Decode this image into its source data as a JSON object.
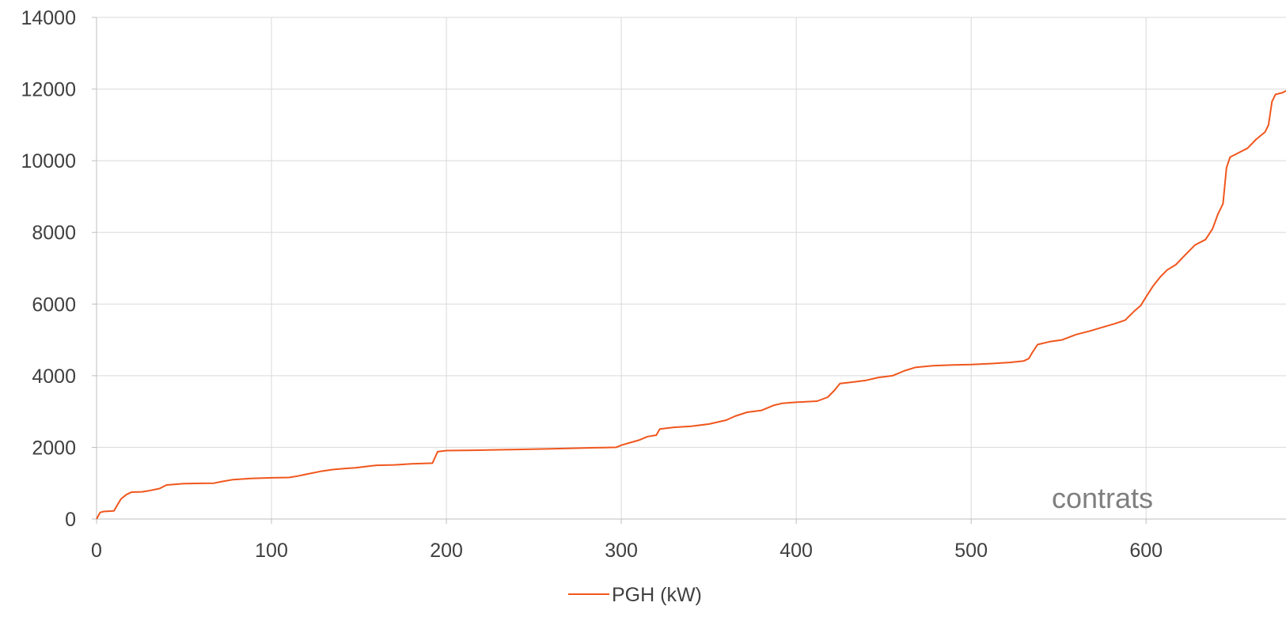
{
  "chart_data": {
    "type": "line",
    "title": "",
    "xlabel": "",
    "ylabel": "",
    "xlim": [
      0,
      680
    ],
    "ylim": [
      0,
      14000
    ],
    "x_ticks": [
      0,
      100,
      200,
      300,
      400,
      500,
      600
    ],
    "y_ticks": [
      0,
      2000,
      4000,
      6000,
      8000,
      10000,
      12000,
      14000
    ],
    "grid": true,
    "legend_position": "bottom",
    "annotation": "contrats",
    "series": [
      {
        "name": "PGH (kW)",
        "color": "#f0561d",
        "points": [
          [
            0,
            0
          ],
          [
            2,
            180
          ],
          [
            4,
            210
          ],
          [
            8,
            220
          ],
          [
            10,
            230
          ],
          [
            12,
            400
          ],
          [
            14,
            560
          ],
          [
            17,
            680
          ],
          [
            20,
            750
          ],
          [
            26,
            760
          ],
          [
            30,
            790
          ],
          [
            36,
            850
          ],
          [
            40,
            950
          ],
          [
            45,
            970
          ],
          [
            50,
            990
          ],
          [
            67,
            1000
          ],
          [
            72,
            1050
          ],
          [
            78,
            1100
          ],
          [
            88,
            1130
          ],
          [
            100,
            1150
          ],
          [
            110,
            1160
          ],
          [
            115,
            1200
          ],
          [
            120,
            1250
          ],
          [
            128,
            1330
          ],
          [
            135,
            1380
          ],
          [
            142,
            1410
          ],
          [
            148,
            1430
          ],
          [
            155,
            1470
          ],
          [
            160,
            1500
          ],
          [
            170,
            1510
          ],
          [
            180,
            1540
          ],
          [
            192,
            1560
          ],
          [
            195,
            1880
          ],
          [
            200,
            1910
          ],
          [
            215,
            1920
          ],
          [
            240,
            1940
          ],
          [
            260,
            1960
          ],
          [
            285,
            1990
          ],
          [
            297,
            2000
          ],
          [
            300,
            2060
          ],
          [
            305,
            2130
          ],
          [
            310,
            2200
          ],
          [
            315,
            2300
          ],
          [
            320,
            2340
          ],
          [
            322,
            2510
          ],
          [
            330,
            2560
          ],
          [
            340,
            2590
          ],
          [
            350,
            2650
          ],
          [
            360,
            2760
          ],
          [
            365,
            2870
          ],
          [
            372,
            2980
          ],
          [
            380,
            3030
          ],
          [
            387,
            3170
          ],
          [
            392,
            3230
          ],
          [
            400,
            3260
          ],
          [
            412,
            3290
          ],
          [
            418,
            3400
          ],
          [
            422,
            3600
          ],
          [
            425,
            3780
          ],
          [
            432,
            3820
          ],
          [
            440,
            3870
          ],
          [
            447,
            3950
          ],
          [
            455,
            4000
          ],
          [
            462,
            4140
          ],
          [
            468,
            4230
          ],
          [
            478,
            4280
          ],
          [
            490,
            4300
          ],
          [
            500,
            4310
          ],
          [
            512,
            4340
          ],
          [
            522,
            4370
          ],
          [
            530,
            4410
          ],
          [
            533,
            4480
          ],
          [
            535,
            4650
          ],
          [
            538,
            4870
          ],
          [
            545,
            4950
          ],
          [
            552,
            5000
          ],
          [
            560,
            5150
          ],
          [
            568,
            5250
          ],
          [
            575,
            5350
          ],
          [
            582,
            5450
          ],
          [
            588,
            5550
          ],
          [
            593,
            5790
          ],
          [
            597,
            5960
          ],
          [
            600,
            6200
          ],
          [
            604,
            6500
          ],
          [
            608,
            6750
          ],
          [
            612,
            6950
          ],
          [
            617,
            7100
          ],
          [
            622,
            7350
          ],
          [
            628,
            7650
          ],
          [
            634,
            7800
          ],
          [
            638,
            8100
          ],
          [
            641,
            8500
          ],
          [
            644,
            8800
          ],
          [
            646,
            9800
          ],
          [
            648,
            10100
          ],
          [
            652,
            10200
          ],
          [
            658,
            10350
          ],
          [
            663,
            10600
          ],
          [
            668,
            10800
          ],
          [
            670,
            11000
          ],
          [
            672,
            11650
          ],
          [
            674,
            11850
          ],
          [
            678,
            11900
          ],
          [
            680,
            11950
          ]
        ]
      }
    ]
  }
}
